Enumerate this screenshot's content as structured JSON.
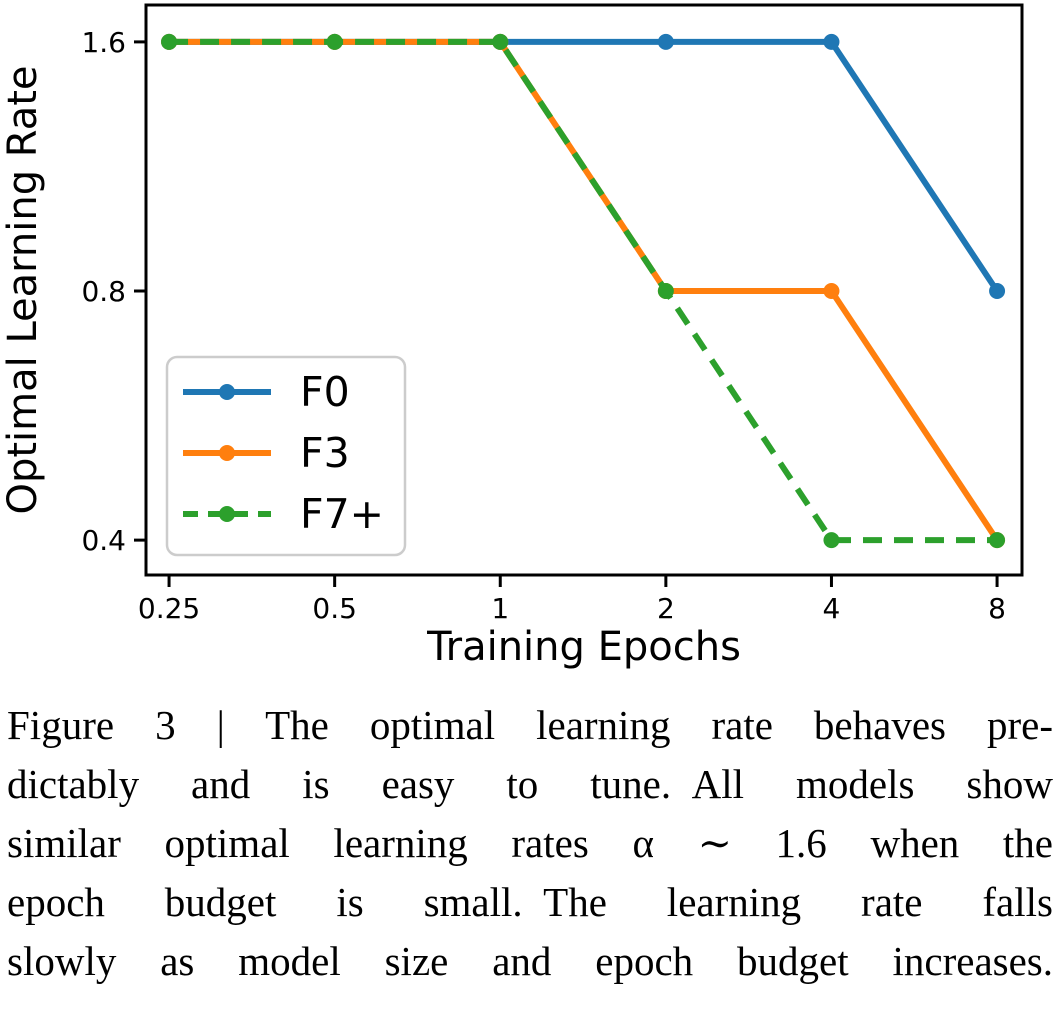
{
  "figure": {
    "caption_lines": [
      "Figure 3 | The optimal learning rate behaves pre-",
      "dictably and is easy to tune. All models show",
      "similar optimal learning rates α ∼ 1.6 when the",
      "epoch budget is small. The learning rate falls",
      "slowly as model size and epoch budget increases."
    ]
  },
  "chart_data": {
    "type": "line",
    "title": "",
    "xlabel": "Training Epochs",
    "ylabel": "Optimal Learning Rate",
    "x_scale": "log2",
    "y_scale": "log2",
    "x": [
      0.25,
      0.5,
      1,
      2,
      4,
      8
    ],
    "x_tick_labels": [
      "0.25",
      "0.5",
      "1",
      "2",
      "4",
      "8"
    ],
    "y_ticks": [
      1.6,
      0.8,
      0.4
    ],
    "y_tick_labels": [
      "1.6",
      "0.8",
      "0.4"
    ],
    "xlim": [
      0.227,
      8.88
    ],
    "ylim": [
      0.363,
      1.773
    ],
    "grid": false,
    "legend_position": "lower left",
    "series": [
      {
        "name": "F0",
        "color": "#1f77b4",
        "style": "solid",
        "marker": "circle",
        "values": [
          1.6,
          1.6,
          1.6,
          1.6,
          1.6,
          0.8
        ]
      },
      {
        "name": "F3",
        "color": "#ff7f0e",
        "style": "solid",
        "marker": "circle",
        "values": [
          1.6,
          1.6,
          1.6,
          0.8,
          0.8,
          0.4
        ]
      },
      {
        "name": "F7+",
        "color": "#2ca02c",
        "style": "dashed",
        "marker": "circle",
        "values": [
          1.6,
          1.6,
          1.6,
          0.8,
          0.4,
          0.4
        ]
      }
    ],
    "colors": {
      "axis": "#000000",
      "legend_border": "#cccccc",
      "background": "#ffffff"
    }
  }
}
